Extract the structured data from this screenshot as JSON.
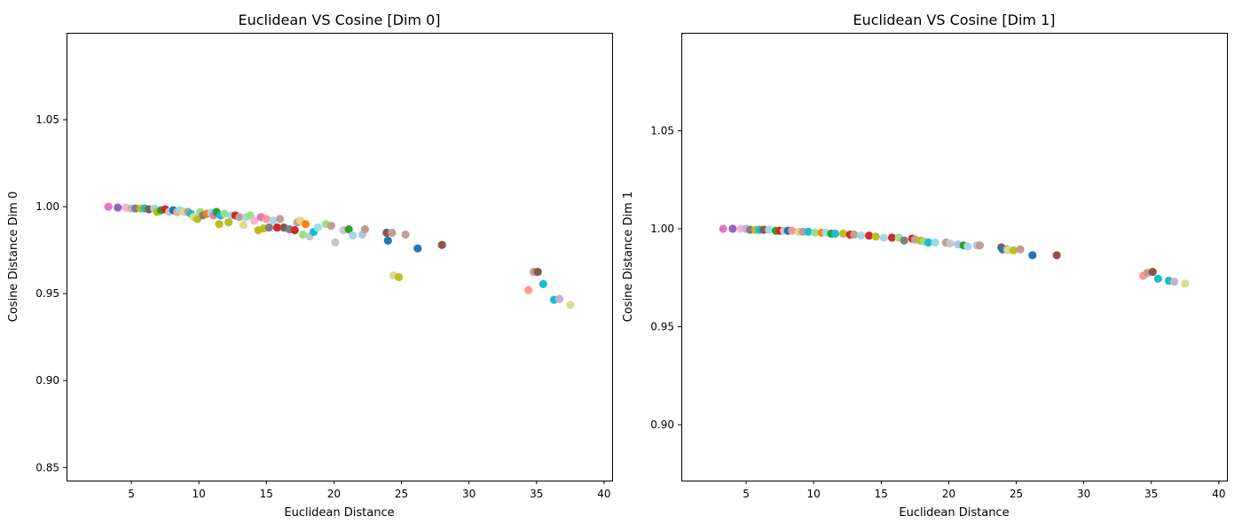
{
  "chart_data": [
    {
      "type": "scatter",
      "title": "Euclidean VS Cosine [Dim 0]",
      "xlabel": "Euclidean Distance",
      "ylabel": "Cosine Distance Dim 0",
      "xlim": [
        0.2,
        40.6
      ],
      "ylim": [
        0.8425,
        1.1
      ],
      "xticks": [
        5,
        10,
        15,
        20,
        25,
        30,
        35,
        40
      ],
      "yticks": [
        0.85,
        0.9,
        0.95,
        1.0,
        1.05
      ],
      "xtick_labels": [
        "5",
        "10",
        "15",
        "20",
        "25",
        "30",
        "35",
        "40"
      ],
      "ytick_labels": [
        "0.85",
        "0.90",
        "0.95",
        "1.00",
        "1.05"
      ],
      "grid": false,
      "legend": "none",
      "points": [
        {
          "x": 3.3,
          "y": 1.0,
          "color": "#e377c2"
        },
        {
          "x": 4.0,
          "y": 0.9995,
          "color": "#9467bd"
        },
        {
          "x": 4.6,
          "y": 0.9995,
          "color": "#f7b6d2"
        },
        {
          "x": 5.0,
          "y": 0.999,
          "color": "#c5b0d5"
        },
        {
          "x": 5.3,
          "y": 0.999,
          "color": "#7f7f7f"
        },
        {
          "x": 5.7,
          "y": 0.999,
          "color": "#bcbd22"
        },
        {
          "x": 6.0,
          "y": 0.999,
          "color": "#17becf"
        },
        {
          "x": 6.3,
          "y": 0.9985,
          "color": "#8c564b"
        },
        {
          "x": 6.7,
          "y": 0.999,
          "color": "#9edae5"
        },
        {
          "x": 6.9,
          "y": 0.997,
          "color": "#bcbd22"
        },
        {
          "x": 7.2,
          "y": 0.998,
          "color": "#2ca02c"
        },
        {
          "x": 7.5,
          "y": 0.9985,
          "color": "#d62728"
        },
        {
          "x": 7.8,
          "y": 0.997,
          "color": "#c7c7c7"
        },
        {
          "x": 8.1,
          "y": 0.998,
          "color": "#1f77b4"
        },
        {
          "x": 8.4,
          "y": 0.997,
          "color": "#ff9896"
        },
        {
          "x": 8.6,
          "y": 0.998,
          "color": "#9edae5"
        },
        {
          "x": 8.9,
          "y": 0.997,
          "color": "#dbdb8d"
        },
        {
          "x": 9.2,
          "y": 0.997,
          "color": "#c49c94"
        },
        {
          "x": 9.4,
          "y": 0.996,
          "color": "#17becf"
        },
        {
          "x": 9.6,
          "y": 0.994,
          "color": "#dbdb8d"
        },
        {
          "x": 9.9,
          "y": 0.993,
          "color": "#bcbd22"
        },
        {
          "x": 10.1,
          "y": 0.997,
          "color": "#98df8a"
        },
        {
          "x": 10.3,
          "y": 0.995,
          "color": "#7f7f7f"
        },
        {
          "x": 10.6,
          "y": 0.996,
          "color": "#ff7f0e"
        },
        {
          "x": 10.9,
          "y": 0.9965,
          "color": "#9edae5"
        },
        {
          "x": 11.1,
          "y": 0.995,
          "color": "#e377c2"
        },
        {
          "x": 11.3,
          "y": 0.997,
          "color": "#2ca02c"
        },
        {
          "x": 11.5,
          "y": 0.99,
          "color": "#bcbd22"
        },
        {
          "x": 11.6,
          "y": 0.995,
          "color": "#17becf"
        },
        {
          "x": 11.9,
          "y": 0.996,
          "color": "#98df8a"
        },
        {
          "x": 12.2,
          "y": 0.991,
          "color": "#bcbd22"
        },
        {
          "x": 12.4,
          "y": 0.995,
          "color": "#9edae5"
        },
        {
          "x": 12.7,
          "y": 0.995,
          "color": "#d62728"
        },
        {
          "x": 13.0,
          "y": 0.994,
          "color": "#c49c94"
        },
        {
          "x": 13.3,
          "y": 0.9895,
          "color": "#dbdb8d"
        },
        {
          "x": 13.5,
          "y": 0.994,
          "color": "#9edae5"
        },
        {
          "x": 13.8,
          "y": 0.995,
          "color": "#98df8a"
        },
        {
          "x": 14.1,
          "y": 0.992,
          "color": "#f7b6d2"
        },
        {
          "x": 14.4,
          "y": 0.9865,
          "color": "#bcbd22"
        },
        {
          "x": 14.6,
          "y": 0.994,
          "color": "#e377c2"
        },
        {
          "x": 14.8,
          "y": 0.9875,
          "color": "#bcbd22"
        },
        {
          "x": 15.0,
          "y": 0.993,
          "color": "#ff9896"
        },
        {
          "x": 15.2,
          "y": 0.988,
          "color": "#7f7f7f"
        },
        {
          "x": 15.5,
          "y": 0.992,
          "color": "#9edae5"
        },
        {
          "x": 15.8,
          "y": 0.988,
          "color": "#d62728"
        },
        {
          "x": 16.0,
          "y": 0.993,
          "color": "#c49c94"
        },
        {
          "x": 16.3,
          "y": 0.988,
          "color": "#8c564b"
        },
        {
          "x": 16.7,
          "y": 0.987,
          "color": "#7f7f7f"
        },
        {
          "x": 17.1,
          "y": 0.9865,
          "color": "#d62728"
        },
        {
          "x": 17.3,
          "y": 0.991,
          "color": "#c49c94"
        },
        {
          "x": 17.5,
          "y": 0.992,
          "color": "#dbdb8d"
        },
        {
          "x": 17.7,
          "y": 0.984,
          "color": "#98df8a"
        },
        {
          "x": 17.9,
          "y": 0.99,
          "color": "#ff7f0e"
        },
        {
          "x": 18.2,
          "y": 0.983,
          "color": "#c7c7c7"
        },
        {
          "x": 18.5,
          "y": 0.9855,
          "color": "#17becf"
        },
        {
          "x": 18.8,
          "y": 0.988,
          "color": "#9edae5"
        },
        {
          "x": 19.4,
          "y": 0.99,
          "color": "#98df8a"
        },
        {
          "x": 19.8,
          "y": 0.989,
          "color": "#c49c94"
        },
        {
          "x": 20.1,
          "y": 0.9795,
          "color": "#c7c7c7"
        },
        {
          "x": 20.7,
          "y": 0.9865,
          "color": "#c7c7c7"
        },
        {
          "x": 21.1,
          "y": 0.987,
          "color": "#2ca02c"
        },
        {
          "x": 21.4,
          "y": 0.9835,
          "color": "#9edae5"
        },
        {
          "x": 22.1,
          "y": 0.984,
          "color": "#aec7e8"
        },
        {
          "x": 22.3,
          "y": 0.987,
          "color": "#c49c94"
        },
        {
          "x": 23.9,
          "y": 0.985,
          "color": "#8c564b"
        },
        {
          "x": 24.0,
          "y": 0.9805,
          "color": "#1f77b4"
        },
        {
          "x": 24.3,
          "y": 0.985,
          "color": "#c49c94"
        },
        {
          "x": 24.4,
          "y": 0.9605,
          "color": "#dbdb8d"
        },
        {
          "x": 24.8,
          "y": 0.9595,
          "color": "#bcbd22"
        },
        {
          "x": 25.3,
          "y": 0.984,
          "color": "#c49c94"
        },
        {
          "x": 26.2,
          "y": 0.976,
          "color": "#1f77b4"
        },
        {
          "x": 28.0,
          "y": 0.978,
          "color": "#8c564b"
        },
        {
          "x": 34.4,
          "y": 0.952,
          "color": "#ff9896"
        },
        {
          "x": 34.8,
          "y": 0.9625,
          "color": "#c49c94"
        },
        {
          "x": 35.1,
          "y": 0.9625,
          "color": "#8c564b"
        },
        {
          "x": 35.5,
          "y": 0.9555,
          "color": "#17becf"
        },
        {
          "x": 36.3,
          "y": 0.9465,
          "color": "#17becf"
        },
        {
          "x": 36.7,
          "y": 0.947,
          "color": "#c5b0d5"
        },
        {
          "x": 37.5,
          "y": 0.9435,
          "color": "#dbdb8d"
        }
      ]
    },
    {
      "type": "scatter",
      "title": "Euclidean VS Cosine [Dim 1]",
      "xlabel": "Euclidean Distance",
      "ylabel": "Cosine Distance Dim 1",
      "xlim": [
        0.2,
        40.6
      ],
      "ylim": [
        0.8715,
        1.1
      ],
      "xticks": [
        5,
        10,
        15,
        20,
        25,
        30,
        35,
        40
      ],
      "yticks": [
        0.9,
        0.95,
        1.0,
        1.05
      ],
      "xtick_labels": [
        "5",
        "10",
        "15",
        "20",
        "25",
        "30",
        "35",
        "40"
      ],
      "ytick_labels": [
        "0.90",
        "0.95",
        "1.00",
        "1.05"
      ],
      "grid": false,
      "legend": "none",
      "points": [
        {
          "x": 3.3,
          "y": 1.0,
          "color": "#e377c2"
        },
        {
          "x": 4.0,
          "y": 1.0,
          "color": "#9467bd"
        },
        {
          "x": 4.6,
          "y": 1.0,
          "color": "#f7b6d2"
        },
        {
          "x": 5.0,
          "y": 1.0,
          "color": "#c5b0d5"
        },
        {
          "x": 5.3,
          "y": 0.9995,
          "color": "#7f7f7f"
        },
        {
          "x": 5.7,
          "y": 0.9995,
          "color": "#bcbd22"
        },
        {
          "x": 6.0,
          "y": 0.9995,
          "color": "#17becf"
        },
        {
          "x": 6.3,
          "y": 0.9995,
          "color": "#8c564b"
        },
        {
          "x": 6.7,
          "y": 0.9995,
          "color": "#9edae5"
        },
        {
          "x": 7.2,
          "y": 0.999,
          "color": "#2ca02c"
        },
        {
          "x": 7.5,
          "y": 0.999,
          "color": "#d62728"
        },
        {
          "x": 7.8,
          "y": 0.999,
          "color": "#c7c7c7"
        },
        {
          "x": 8.1,
          "y": 0.999,
          "color": "#1f77b4"
        },
        {
          "x": 8.4,
          "y": 0.999,
          "color": "#ff9896"
        },
        {
          "x": 8.9,
          "y": 0.9985,
          "color": "#dbdb8d"
        },
        {
          "x": 9.2,
          "y": 0.9985,
          "color": "#c49c94"
        },
        {
          "x": 9.6,
          "y": 0.9985,
          "color": "#17becf"
        },
        {
          "x": 10.1,
          "y": 0.998,
          "color": "#98df8a"
        },
        {
          "x": 10.6,
          "y": 0.998,
          "color": "#ff7f0e"
        },
        {
          "x": 10.9,
          "y": 0.998,
          "color": "#9edae5"
        },
        {
          "x": 11.3,
          "y": 0.9975,
          "color": "#2ca02c"
        },
        {
          "x": 11.6,
          "y": 0.9975,
          "color": "#17becf"
        },
        {
          "x": 12.2,
          "y": 0.9975,
          "color": "#bcbd22"
        },
        {
          "x": 12.7,
          "y": 0.997,
          "color": "#d62728"
        },
        {
          "x": 13.0,
          "y": 0.997,
          "color": "#c49c94"
        },
        {
          "x": 13.5,
          "y": 0.9965,
          "color": "#9edae5"
        },
        {
          "x": 14.1,
          "y": 0.9965,
          "color": "#d62728"
        },
        {
          "x": 14.6,
          "y": 0.996,
          "color": "#bcbd22"
        },
        {
          "x": 15.2,
          "y": 0.9955,
          "color": "#9edae5"
        },
        {
          "x": 15.8,
          "y": 0.9955,
          "color": "#d62728"
        },
        {
          "x": 16.3,
          "y": 0.9955,
          "color": "#98df8a"
        },
        {
          "x": 16.7,
          "y": 0.994,
          "color": "#7f7f7f"
        },
        {
          "x": 17.3,
          "y": 0.995,
          "color": "#d62728"
        },
        {
          "x": 17.5,
          "y": 0.9945,
          "color": "#c49c94"
        },
        {
          "x": 17.9,
          "y": 0.994,
          "color": "#bcbd22"
        },
        {
          "x": 18.2,
          "y": 0.9935,
          "color": "#98df8a"
        },
        {
          "x": 18.5,
          "y": 0.993,
          "color": "#17becf"
        },
        {
          "x": 19.0,
          "y": 0.993,
          "color": "#9edae5"
        },
        {
          "x": 19.8,
          "y": 0.993,
          "color": "#c49c94"
        },
        {
          "x": 20.1,
          "y": 0.9925,
          "color": "#c7c7c7"
        },
        {
          "x": 20.7,
          "y": 0.992,
          "color": "#aec7e8"
        },
        {
          "x": 21.1,
          "y": 0.9915,
          "color": "#2ca02c"
        },
        {
          "x": 21.4,
          "y": 0.991,
          "color": "#9edae5"
        },
        {
          "x": 22.1,
          "y": 0.9915,
          "color": "#aec7e8"
        },
        {
          "x": 22.3,
          "y": 0.9915,
          "color": "#c49c94"
        },
        {
          "x": 23.9,
          "y": 0.9905,
          "color": "#8c564b"
        },
        {
          "x": 24.0,
          "y": 0.9895,
          "color": "#1f77b4"
        },
        {
          "x": 24.3,
          "y": 0.9895,
          "color": "#c49c94"
        },
        {
          "x": 24.4,
          "y": 0.989,
          "color": "#dbdb8d"
        },
        {
          "x": 24.8,
          "y": 0.989,
          "color": "#bcbd22"
        },
        {
          "x": 25.3,
          "y": 0.9895,
          "color": "#c49c94"
        },
        {
          "x": 26.2,
          "y": 0.9865,
          "color": "#1f77b4"
        },
        {
          "x": 28.0,
          "y": 0.9865,
          "color": "#8c564b"
        },
        {
          "x": 34.4,
          "y": 0.976,
          "color": "#ff9896"
        },
        {
          "x": 34.7,
          "y": 0.9775,
          "color": "#c49c94"
        },
        {
          "x": 35.1,
          "y": 0.978,
          "color": "#8c564b"
        },
        {
          "x": 35.5,
          "y": 0.9745,
          "color": "#17becf"
        },
        {
          "x": 36.3,
          "y": 0.9735,
          "color": "#17becf"
        },
        {
          "x": 36.7,
          "y": 0.973,
          "color": "#c5b0d5"
        },
        {
          "x": 37.5,
          "y": 0.972,
          "color": "#dbdb8d"
        }
      ]
    }
  ]
}
